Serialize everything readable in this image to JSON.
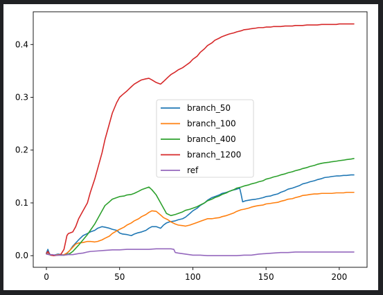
{
  "chart_data": {
    "type": "line",
    "title": "",
    "xlabel": "",
    "ylabel": "",
    "xlim": [
      -9,
      219
    ],
    "ylim": [
      -0.022,
      0.462
    ],
    "xticks": [
      0,
      50,
      100,
      150,
      200
    ],
    "yticks": [
      0.0,
      0.1,
      0.2,
      0.3,
      0.4
    ],
    "xtick_labels": [
      "0",
      "50",
      "100",
      "150",
      "200"
    ],
    "ytick_labels": [
      "0.0",
      "0.1",
      "0.2",
      "0.3",
      "0.4"
    ],
    "grid": false,
    "legend_position": "center",
    "series": [
      {
        "name": "branch_50",
        "color": "#1f77b4",
        "x": [
          0,
          1,
          2,
          3,
          5,
          8,
          10,
          12,
          14,
          16,
          18,
          20,
          22,
          25,
          28,
          30,
          33,
          35,
          38,
          40,
          43,
          45,
          48,
          50,
          52,
          55,
          58,
          60,
          62,
          65,
          68,
          70,
          72,
          75,
          78,
          80,
          82,
          84,
          86,
          88,
          90,
          93,
          95,
          98,
          100,
          103,
          105,
          108,
          110,
          113,
          115,
          118,
          120,
          123,
          125,
          127,
          130,
          132,
          133,
          134,
          136,
          140,
          143,
          145,
          148,
          150,
          153,
          155,
          158,
          160,
          163,
          165,
          168,
          170,
          173,
          175,
          178,
          180,
          183,
          185,
          188,
          190,
          193,
          195,
          198,
          200,
          203,
          205,
          208,
          210
        ],
        "y": [
          0.005,
          0.012,
          0.004,
          0.001,
          0.001,
          0.003,
          0.002,
          0.001,
          0.004,
          0.01,
          0.018,
          0.024,
          0.03,
          0.038,
          0.042,
          0.045,
          0.048,
          0.052,
          0.055,
          0.054,
          0.052,
          0.05,
          0.048,
          0.043,
          0.041,
          0.04,
          0.038,
          0.041,
          0.043,
          0.045,
          0.048,
          0.052,
          0.055,
          0.055,
          0.052,
          0.058,
          0.062,
          0.064,
          0.065,
          0.066,
          0.068,
          0.07,
          0.073,
          0.08,
          0.085,
          0.09,
          0.095,
          0.1,
          0.105,
          0.11,
          0.112,
          0.115,
          0.118,
          0.12,
          0.122,
          0.124,
          0.126,
          0.128,
          0.116,
          0.102,
          0.104,
          0.106,
          0.107,
          0.108,
          0.11,
          0.112,
          0.113,
          0.115,
          0.117,
          0.12,
          0.123,
          0.126,
          0.128,
          0.13,
          0.133,
          0.136,
          0.138,
          0.14,
          0.142,
          0.144,
          0.146,
          0.148,
          0.149,
          0.15,
          0.151,
          0.151,
          0.152,
          0.152,
          0.153,
          0.153
        ]
      },
      {
        "name": "branch_100",
        "color": "#ff7f0e",
        "x": [
          0,
          1,
          2,
          3,
          5,
          8,
          10,
          12,
          14,
          16,
          18,
          20,
          22,
          25,
          28,
          30,
          33,
          35,
          38,
          40,
          43,
          45,
          48,
          50,
          53,
          55,
          58,
          60,
          63,
          65,
          68,
          70,
          72,
          75,
          78,
          80,
          83,
          85,
          88,
          90,
          93,
          95,
          98,
          100,
          103,
          105,
          108,
          110,
          113,
          115,
          118,
          120,
          123,
          125,
          128,
          130,
          133,
          135,
          138,
          140,
          143,
          145,
          148,
          150,
          153,
          155,
          158,
          160,
          163,
          165,
          168,
          170,
          173,
          175,
          178,
          180,
          183,
          185,
          188,
          190,
          193,
          195,
          198,
          200,
          203,
          205,
          208,
          210
        ],
        "y": [
          0.004,
          0.003,
          0.002,
          0.001,
          0.001,
          0.002,
          0.001,
          0.002,
          0.005,
          0.01,
          0.016,
          0.022,
          0.024,
          0.025,
          0.027,
          0.027,
          0.026,
          0.027,
          0.03,
          0.033,
          0.037,
          0.042,
          0.047,
          0.05,
          0.054,
          0.058,
          0.062,
          0.066,
          0.07,
          0.074,
          0.078,
          0.082,
          0.085,
          0.084,
          0.077,
          0.072,
          0.068,
          0.064,
          0.06,
          0.058,
          0.057,
          0.056,
          0.058,
          0.06,
          0.063,
          0.065,
          0.068,
          0.07,
          0.07,
          0.071,
          0.072,
          0.074,
          0.076,
          0.078,
          0.081,
          0.084,
          0.087,
          0.088,
          0.09,
          0.092,
          0.094,
          0.095,
          0.096,
          0.098,
          0.099,
          0.1,
          0.101,
          0.103,
          0.105,
          0.107,
          0.108,
          0.11,
          0.112,
          0.114,
          0.115,
          0.116,
          0.117,
          0.117,
          0.118,
          0.118,
          0.118,
          0.118,
          0.119,
          0.119,
          0.119,
          0.12,
          0.12,
          0.12
        ]
      },
      {
        "name": "branch_400",
        "color": "#2ca02c",
        "x": [
          0,
          1,
          2,
          3,
          5,
          8,
          10,
          12,
          14,
          16,
          18,
          20,
          22,
          25,
          28,
          30,
          33,
          35,
          38,
          40,
          43,
          45,
          48,
          50,
          53,
          55,
          58,
          60,
          63,
          65,
          68,
          70,
          72,
          75,
          78,
          80,
          82,
          85,
          88,
          90,
          93,
          95,
          98,
          100,
          103,
          105,
          108,
          110,
          113,
          115,
          118,
          120,
          123,
          125,
          128,
          130,
          133,
          135,
          138,
          140,
          143,
          145,
          148,
          150,
          153,
          155,
          158,
          160,
          163,
          165,
          168,
          170,
          173,
          175,
          178,
          180,
          183,
          185,
          188,
          190,
          193,
          195,
          198,
          200,
          203,
          205,
          208,
          210
        ],
        "y": [
          0.004,
          0.003,
          0.002,
          0.001,
          0.001,
          0.001,
          0.001,
          0.001,
          0.002,
          0.004,
          0.008,
          0.014,
          0.02,
          0.03,
          0.04,
          0.048,
          0.06,
          0.07,
          0.085,
          0.095,
          0.102,
          0.107,
          0.11,
          0.112,
          0.113,
          0.115,
          0.116,
          0.118,
          0.122,
          0.125,
          0.128,
          0.13,
          0.125,
          0.115,
          0.1,
          0.09,
          0.08,
          0.076,
          0.078,
          0.08,
          0.083,
          0.086,
          0.088,
          0.09,
          0.093,
          0.096,
          0.1,
          0.104,
          0.107,
          0.11,
          0.113,
          0.116,
          0.119,
          0.122,
          0.125,
          0.128,
          0.13,
          0.132,
          0.134,
          0.136,
          0.138,
          0.14,
          0.142,
          0.145,
          0.147,
          0.149,
          0.151,
          0.153,
          0.155,
          0.157,
          0.159,
          0.161,
          0.163,
          0.165,
          0.167,
          0.169,
          0.171,
          0.173,
          0.175,
          0.176,
          0.177,
          0.178,
          0.179,
          0.18,
          0.181,
          0.182,
          0.183,
          0.184
        ]
      },
      {
        "name": "branch_1200",
        "color": "#d62728",
        "x": [
          0,
          1,
          2,
          3,
          5,
          8,
          10,
          12,
          13,
          14,
          15,
          16,
          18,
          20,
          22,
          25,
          28,
          30,
          33,
          35,
          38,
          40,
          42,
          45,
          48,
          50,
          52,
          55,
          58,
          60,
          63,
          65,
          68,
          70,
          72,
          75,
          78,
          80,
          83,
          85,
          88,
          90,
          93,
          95,
          98,
          100,
          103,
          105,
          108,
          110,
          113,
          115,
          118,
          120,
          123,
          125,
          128,
          130,
          133,
          135,
          138,
          140,
          143,
          145,
          148,
          150,
          153,
          155,
          158,
          160,
          163,
          165,
          168,
          170,
          173,
          175,
          178,
          180,
          183,
          185,
          188,
          190,
          193,
          195,
          198,
          200,
          203,
          205,
          208,
          210
        ],
        "y": [
          0.004,
          0.008,
          0.003,
          0.001,
          0.0,
          0.001,
          0.003,
          0.012,
          0.025,
          0.038,
          0.042,
          0.043,
          0.045,
          0.055,
          0.07,
          0.085,
          0.1,
          0.12,
          0.145,
          0.165,
          0.195,
          0.22,
          0.24,
          0.27,
          0.29,
          0.3,
          0.305,
          0.312,
          0.32,
          0.325,
          0.33,
          0.333,
          0.335,
          0.336,
          0.333,
          0.328,
          0.325,
          0.33,
          0.338,
          0.343,
          0.348,
          0.352,
          0.356,
          0.36,
          0.366,
          0.372,
          0.378,
          0.385,
          0.392,
          0.398,
          0.403,
          0.408,
          0.412,
          0.415,
          0.418,
          0.42,
          0.422,
          0.424,
          0.426,
          0.428,
          0.429,
          0.43,
          0.431,
          0.432,
          0.432,
          0.433,
          0.433,
          0.434,
          0.434,
          0.434,
          0.435,
          0.435,
          0.435,
          0.436,
          0.436,
          0.436,
          0.437,
          0.437,
          0.437,
          0.437,
          0.438,
          0.438,
          0.438,
          0.438,
          0.438,
          0.439,
          0.439,
          0.439,
          0.439,
          0.439
        ]
      },
      {
        "name": "ref",
        "color": "#9467bd",
        "x": [
          0,
          2,
          4,
          6,
          8,
          10,
          12,
          15,
          18,
          20,
          22,
          25,
          28,
          30,
          35,
          40,
          45,
          50,
          55,
          60,
          65,
          70,
          75,
          80,
          85,
          87,
          88,
          90,
          95,
          100,
          105,
          110,
          115,
          120,
          125,
          130,
          135,
          140,
          145,
          150,
          155,
          160,
          165,
          170,
          175,
          180,
          185,
          190,
          195,
          200,
          205,
          210
        ],
        "y": [
          0.003,
          0.002,
          0.002,
          0.001,
          0.001,
          0.001,
          0.001,
          0.002,
          0.002,
          0.003,
          0.004,
          0.005,
          0.007,
          0.008,
          0.009,
          0.01,
          0.011,
          0.011,
          0.012,
          0.012,
          0.012,
          0.012,
          0.013,
          0.013,
          0.013,
          0.012,
          0.006,
          0.005,
          0.003,
          0.001,
          0.001,
          0.0,
          0.0,
          0.0,
          0.0,
          0.0,
          0.001,
          0.001,
          0.003,
          0.004,
          0.005,
          0.006,
          0.006,
          0.007,
          0.007,
          0.007,
          0.007,
          0.007,
          0.007,
          0.007,
          0.007,
          0.007
        ]
      }
    ]
  }
}
